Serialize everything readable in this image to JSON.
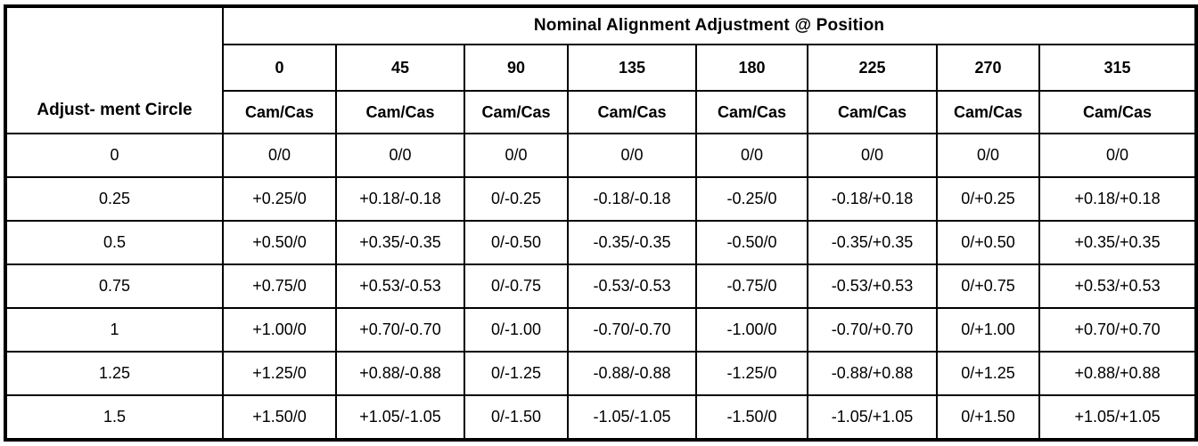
{
  "table": {
    "corner_header": "Adjust- ment Circle",
    "span_header": "Nominal Alignment Adjustment @ Position",
    "positions": [
      "0",
      "45",
      "90",
      "135",
      "180",
      "225",
      "270",
      "315"
    ],
    "unit_row": [
      "Cam/Cas",
      "Cam/Cas",
      "Cam/Cas",
      "Cam/Cas",
      "Cam/Cas",
      "Cam/Cas",
      "Cam/Cas",
      "Cam/Cas"
    ],
    "rows": [
      {
        "circle": "0",
        "values": [
          "0/0",
          "0/0",
          "0/0",
          "0/0",
          "0/0",
          "0/0",
          "0/0",
          "0/0"
        ]
      },
      {
        "circle": "0.25",
        "values": [
          "+0.25/0",
          "+0.18/-0.18",
          "0/-0.25",
          "-0.18/-0.18",
          "-0.25/0",
          "-0.18/+0.18",
          "0/+0.25",
          "+0.18/+0.18"
        ]
      },
      {
        "circle": "0.5",
        "values": [
          "+0.50/0",
          "+0.35/-0.35",
          "0/-0.50",
          "-0.35/-0.35",
          "-0.50/0",
          "-0.35/+0.35",
          "0/+0.50",
          "+0.35/+0.35"
        ]
      },
      {
        "circle": "0.75",
        "values": [
          "+0.75/0",
          "+0.53/-0.53",
          "0/-0.75",
          "-0.53/-0.53",
          "-0.75/0",
          "-0.53/+0.53",
          "0/+0.75",
          "+0.53/+0.53"
        ]
      },
      {
        "circle": "1",
        "values": [
          "+1.00/0",
          "+0.70/-0.70",
          "0/-1.00",
          "-0.70/-0.70",
          "-1.00/0",
          "-0.70/+0.70",
          "0/+1.00",
          "+0.70/+0.70"
        ]
      },
      {
        "circle": "1.25",
        "values": [
          "+1.25/0",
          "+0.88/-0.88",
          "0/-1.25",
          "-0.88/-0.88",
          "-1.25/0",
          "-0.88/+0.88",
          "0/+1.25",
          "+0.88/+0.88"
        ]
      },
      {
        "circle": "1.5",
        "values": [
          "+1.50/0",
          "+1.05/-1.05",
          "0/-1.50",
          "-1.05/-1.05",
          "-1.50/0",
          "-1.05/+1.05",
          "0/+1.50",
          "+1.05/+1.05"
        ]
      }
    ]
  }
}
